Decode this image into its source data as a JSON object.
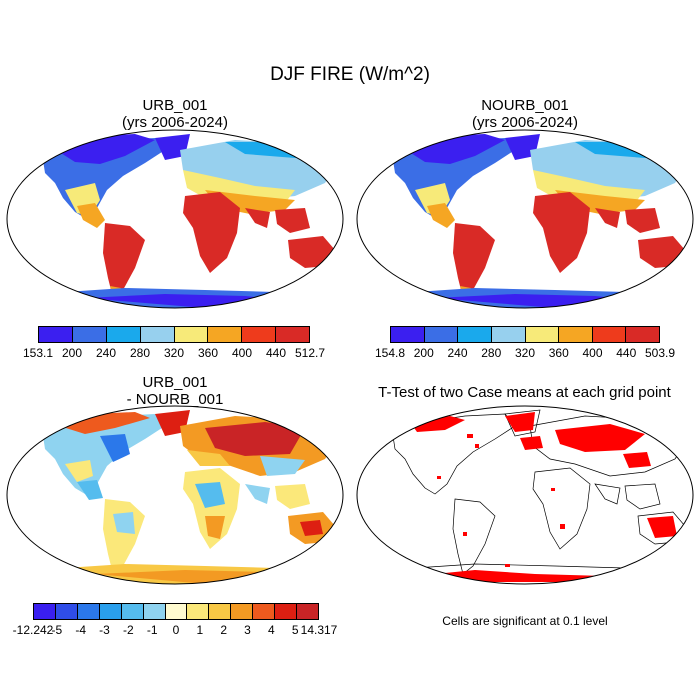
{
  "figure": {
    "title": "DJF FIRE (W/m^2)"
  },
  "panels": {
    "urb": {
      "title_line1": "URB_001",
      "title_line2": "(yrs 2006-2024)",
      "colorbar": {
        "labels": [
          "153.1",
          "200",
          "240",
          "280",
          "320",
          "360",
          "400",
          "440",
          "512.7"
        ],
        "colors": [
          "#3b1ff0",
          "#3b6ee6",
          "#1aa9ec",
          "#97d0ee",
          "#f7ea79",
          "#f5a623",
          "#ee3b1c",
          "#d92a26"
        ]
      }
    },
    "nourb": {
      "title_line1": "NOURB_001",
      "title_line2": "(yrs 2006-2024)",
      "colorbar": {
        "labels": [
          "154.8",
          "200",
          "240",
          "280",
          "320",
          "360",
          "400",
          "440",
          "503.9"
        ],
        "colors": [
          "#3b1ff0",
          "#3b6ee6",
          "#1aa9ec",
          "#97d0ee",
          "#f7ea79",
          "#f5a623",
          "#ee3b1c",
          "#d92a26"
        ]
      }
    },
    "diff": {
      "title_line1": "URB_001",
      "title_line2": "- NOURB_001",
      "colorbar": {
        "labels": [
          "-12.242",
          "-5",
          "-4",
          "-3",
          "-2",
          "-1",
          "0",
          "1",
          "2",
          "3",
          "4",
          "5",
          "14.317"
        ],
        "colors": [
          "#3a1ff0",
          "#2f4de8",
          "#2b78ea",
          "#2a9fec",
          "#55bcee",
          "#8fd3f0",
          "#fffbd0",
          "#fbe87a",
          "#f8c845",
          "#f39a23",
          "#ee5a1e",
          "#dd1f12",
          "#c92426"
        ]
      }
    },
    "ttest": {
      "title": "T-Test of two Case means at each grid point",
      "note": "Cells are significant at 0.1 level",
      "color": "#ff0000"
    }
  }
}
